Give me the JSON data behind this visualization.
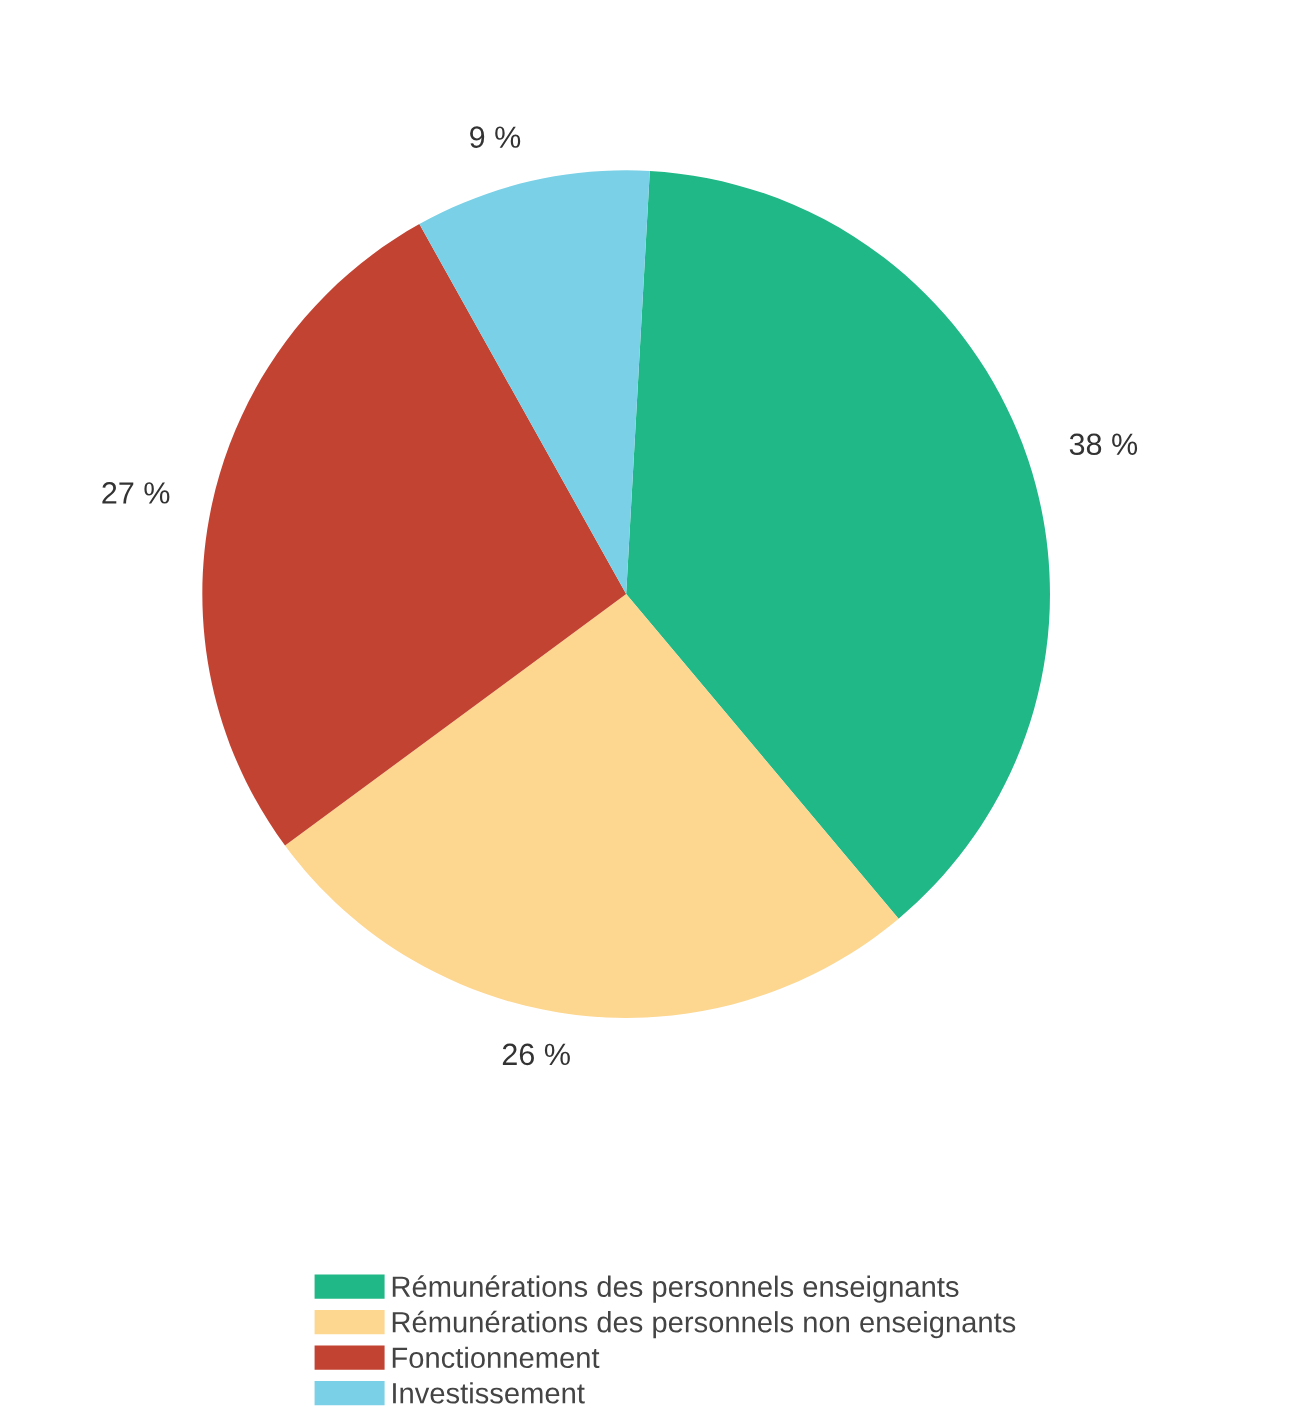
{
  "chart_data": {
    "type": "pie",
    "categories": [
      "Rémunérations des personnels enseignants",
      "Rémunérations des personnels non enseignants",
      "Fonctionnement",
      "Investissement"
    ],
    "values": [
      38,
      26,
      27,
      9
    ],
    "colors": [
      "#20b886",
      "#fdd68f",
      "#c24332",
      "#7ad0e6"
    ],
    "value_labels": [
      "38 %",
      "26 %",
      "27 %",
      "9 %"
    ],
    "legend": "bottom"
  }
}
